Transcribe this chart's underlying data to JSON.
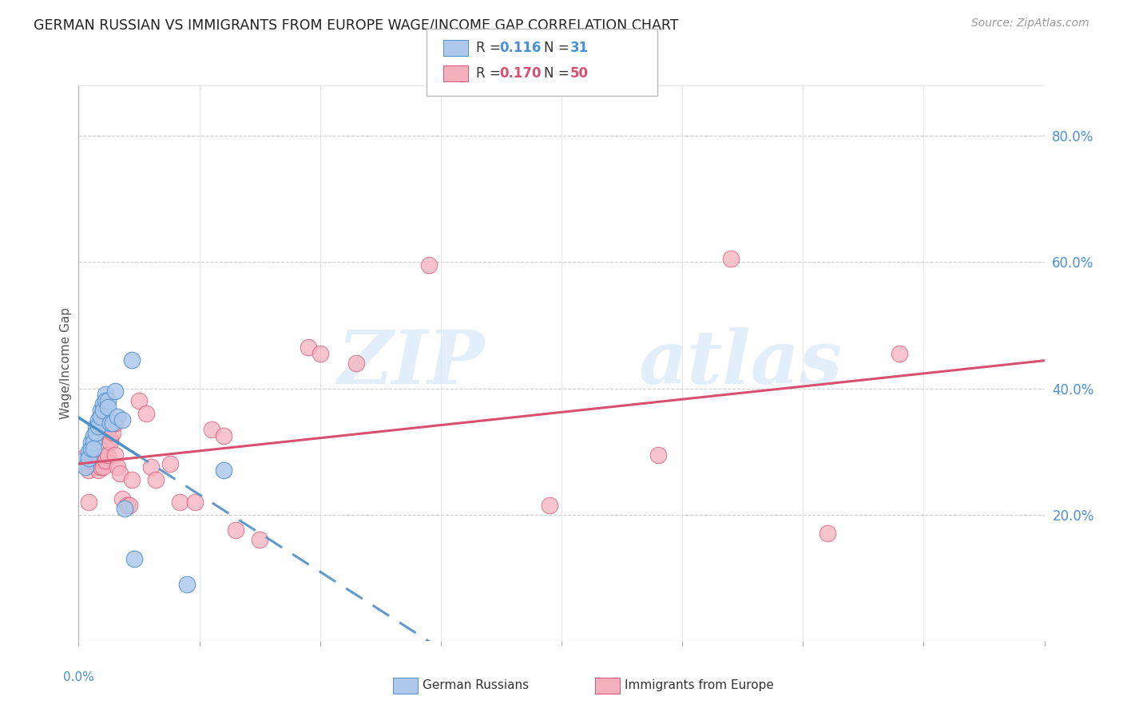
{
  "title": "GERMAN RUSSIAN VS IMMIGRANTS FROM EUROPE WAGE/INCOME GAP CORRELATION CHART",
  "source": "Source: ZipAtlas.com",
  "ylabel": "Wage/Income Gap",
  "right_yticks": [
    "20.0%",
    "40.0%",
    "60.0%",
    "80.0%"
  ],
  "right_ytick_vals": [
    0.2,
    0.4,
    0.6,
    0.8
  ],
  "xlim": [
    0.0,
    0.4
  ],
  "ylim": [
    0.0,
    0.88
  ],
  "watermark_zip": "ZIP",
  "watermark_atlas": "atlas",
  "german_russian": {
    "fill_color": "#adc8eb",
    "edge_color": "#5090c8",
    "trend_color": "#5090c8",
    "x": [
      0.002,
      0.003,
      0.004,
      0.004,
      0.005,
      0.005,
      0.006,
      0.006,
      0.006,
      0.007,
      0.007,
      0.008,
      0.008,
      0.009,
      0.009,
      0.01,
      0.01,
      0.011,
      0.011,
      0.012,
      0.012,
      0.013,
      0.014,
      0.015,
      0.016,
      0.018,
      0.019,
      0.022,
      0.023,
      0.045,
      0.06
    ],
    "y": [
      0.285,
      0.275,
      0.3,
      0.29,
      0.315,
      0.305,
      0.325,
      0.315,
      0.305,
      0.34,
      0.33,
      0.35,
      0.34,
      0.365,
      0.355,
      0.375,
      0.365,
      0.39,
      0.38,
      0.38,
      0.37,
      0.345,
      0.345,
      0.395,
      0.355,
      0.35,
      0.21,
      0.445,
      0.13,
      0.09,
      0.27
    ]
  },
  "immigrants_europe": {
    "fill_color": "#f5b0be",
    "edge_color": "#d85070",
    "trend_color": "#d85070",
    "x": [
      0.002,
      0.003,
      0.004,
      0.004,
      0.005,
      0.005,
      0.006,
      0.007,
      0.007,
      0.008,
      0.008,
      0.009,
      0.009,
      0.01,
      0.01,
      0.011,
      0.011,
      0.012,
      0.012,
      0.013,
      0.013,
      0.014,
      0.015,
      0.015,
      0.016,
      0.017,
      0.018,
      0.02,
      0.021,
      0.022,
      0.025,
      0.028,
      0.03,
      0.032,
      0.038,
      0.042,
      0.048,
      0.055,
      0.06,
      0.065,
      0.075,
      0.095,
      0.1,
      0.115,
      0.145,
      0.195,
      0.24,
      0.27,
      0.31,
      0.34
    ],
    "y": [
      0.29,
      0.28,
      0.22,
      0.27,
      0.295,
      0.285,
      0.29,
      0.285,
      0.275,
      0.285,
      0.27,
      0.285,
      0.275,
      0.285,
      0.275,
      0.295,
      0.285,
      0.295,
      0.325,
      0.32,
      0.315,
      0.33,
      0.345,
      0.295,
      0.275,
      0.265,
      0.225,
      0.215,
      0.215,
      0.255,
      0.38,
      0.36,
      0.275,
      0.255,
      0.28,
      0.22,
      0.22,
      0.335,
      0.325,
      0.175,
      0.16,
      0.465,
      0.455,
      0.44,
      0.595,
      0.215,
      0.295,
      0.605,
      0.17,
      0.455
    ]
  }
}
